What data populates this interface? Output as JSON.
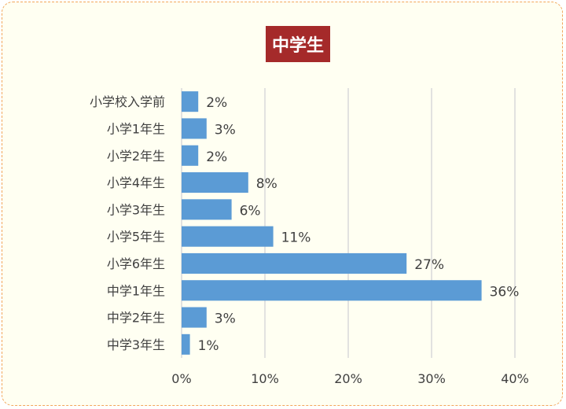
{
  "chart_data": {
    "type": "bar",
    "orientation": "horizontal",
    "title": "中学生",
    "categories": [
      "小学校入学前",
      "小学1年生",
      "小学2年生",
      "小学4年生",
      "小学3年生",
      "小学5年生",
      "小学6年生",
      "中学1年生",
      "中学2年生",
      "中学3年生"
    ],
    "values": [
      2,
      3,
      2,
      8,
      6,
      11,
      27,
      36,
      3,
      1
    ],
    "value_labels": [
      "2%",
      "3%",
      "2%",
      "8%",
      "6%",
      "11%",
      "27%",
      "36%",
      "3%",
      "1%"
    ],
    "xlim": [
      0,
      40
    ],
    "xticks": [
      0,
      10,
      20,
      30,
      40
    ],
    "xtick_labels": [
      "0%",
      "10%",
      "20%",
      "30%",
      "40%"
    ],
    "xlabel": "",
    "ylabel": "",
    "grid": true,
    "legend": "none",
    "colors": {
      "bar": "#5b9bd5",
      "title_bg": "#a52a2a",
      "border": "#f2a65a",
      "background": "#fffff2"
    }
  }
}
